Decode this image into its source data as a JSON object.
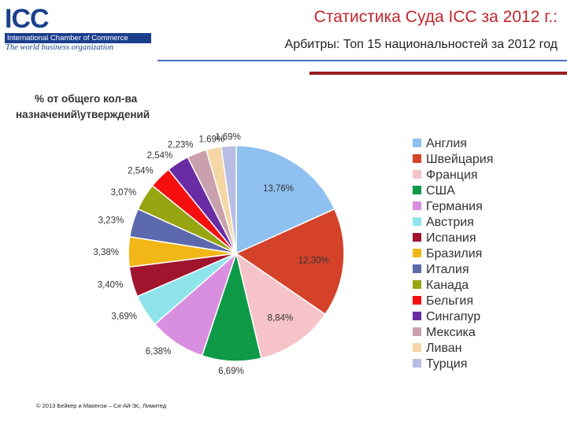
{
  "logo": {
    "letters": "ICC",
    "bar_text": "International Chamber of Commerce",
    "tagline": "The world business organization"
  },
  "header": {
    "title": "Статистика Суда ICC за 2012 г.:",
    "subtitle": "Арбитры: Топ 15 национальностей за 2012 год",
    "brand_blue": "#1c3f8c",
    "title_red": "#c0272d"
  },
  "footer": {
    "copyright": "© 2013 Бейкер и Макензи – Си-Ай-Эс, Лимитед"
  },
  "chart_data": {
    "type": "pie",
    "title": "% от общего кол-ва назначений\\утверждений",
    "title_lines": [
      "% от общего кол-ва",
      "назначений\\утверждений"
    ],
    "legend_position": "right",
    "categories": [
      "Англия",
      "Швейцария",
      "Франция",
      "США",
      "Германия",
      "Австрия",
      "Испания",
      "Бразилия",
      "Италия",
      "Канада",
      "Бельгия",
      "Сингапур",
      "Мексика",
      "Ливан",
      "Турция"
    ],
    "values": [
      13.76,
      12.3,
      8.84,
      6.69,
      6.38,
      3.69,
      3.4,
      3.38,
      3.23,
      3.07,
      2.54,
      2.54,
      2.23,
      1.69,
      1.69
    ],
    "data_labels": [
      "13,76%",
      "12,30%",
      "8,84%",
      "6,69%",
      "6,38%",
      "3,69%",
      "3,40%",
      "3,38%",
      "3,23%",
      "3,07%",
      "2,54%",
      "2,54%",
      "2,23%",
      "1.69%",
      "1,69%"
    ],
    "colors": [
      "#8ec1ef",
      "#d5422a",
      "#f6c3c9",
      "#0f9a47",
      "#d98fe0",
      "#8fe4ec",
      "#a0142e",
      "#f2b716",
      "#5c6aad",
      "#98a513",
      "#f50f0f",
      "#6a2ca3",
      "#c9a0ab",
      "#f5d6a5",
      "#b7bde3"
    ]
  }
}
